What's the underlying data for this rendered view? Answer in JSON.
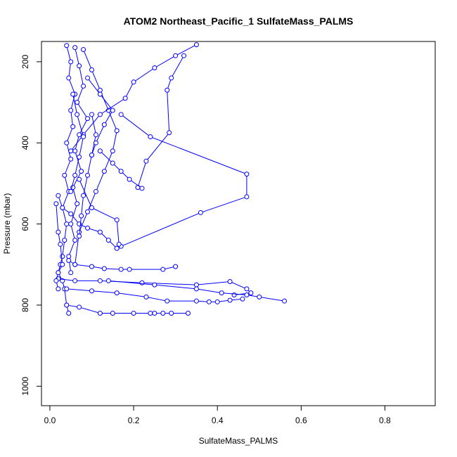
{
  "chart_data": {
    "type": "scatter",
    "title": "ATOM2 Northeast_Pacific_1 SulfateMass_PALMS",
    "xlabel": "SulfateMass_PALMS",
    "ylabel": "Pressure (mbar)",
    "xlim": [
      -0.02,
      0.92
    ],
    "ylim": [
      1048,
      150
    ],
    "y_reversed": true,
    "x_ticks": [
      0.0,
      0.2,
      0.4,
      0.6,
      0.8
    ],
    "x_tick_labels": [
      "0.0",
      "0.2",
      "0.4",
      "0.6",
      "0.8"
    ],
    "y_ticks": [
      200,
      400,
      600,
      800,
      1000
    ],
    "y_tick_labels": [
      "200",
      "400",
      "600",
      "800",
      "1000"
    ],
    "grid": false,
    "legend": "none",
    "series_color": "#0000ff",
    "series": [
      {
        "x": [
          0.04,
          0.05,
          0.045,
          0.06,
          0.05,
          0.055,
          0.04,
          0.05,
          0.035,
          0.045,
          0.03,
          0.04,
          0.035,
          0.03,
          0.025,
          0.02,
          0.03,
          0.035,
          0.04,
          0.045
        ],
        "y": [
          160,
          200,
          240,
          280,
          320,
          360,
          400,
          440,
          480,
          520,
          560,
          600,
          640,
          680,
          700,
          720,
          740,
          760,
          800,
          820
        ]
      },
      {
        "x": [
          0.06,
          0.07,
          0.08,
          0.065,
          0.09,
          0.07,
          0.06,
          0.075,
          0.055,
          0.065,
          0.05,
          0.06,
          0.045,
          0.05
        ],
        "y": [
          165,
          210,
          260,
          300,
          340,
          380,
          420,
          470,
          510,
          550,
          600,
          640,
          680,
          720
        ]
      },
      {
        "x": [
          0.08,
          0.1,
          0.12,
          0.14,
          0.16,
          0.15,
          0.13,
          0.11,
          0.09,
          0.07,
          0.06
        ],
        "y": [
          170,
          220,
          270,
          320,
          370,
          420,
          470,
          520,
          570,
          620,
          700
        ]
      },
      {
        "x": [
          0.35,
          0.3,
          0.25,
          0.2,
          0.18,
          0.12,
          0.08,
          0.05
        ],
        "y": [
          158,
          185,
          215,
          250,
          290,
          330,
          380,
          420
        ]
      },
      {
        "x": [
          0.32,
          0.29,
          0.28,
          0.285,
          0.23,
          0.21
        ],
        "y": [
          185,
          240,
          270,
          375,
          445,
          510
        ]
      },
      {
        "x": [
          0.17,
          0.24,
          0.47,
          0.47,
          0.36,
          0.17,
          0.16
        ],
        "y": [
          330,
          385,
          477,
          533,
          572,
          655,
          660
        ]
      },
      {
        "x": [
          0.12,
          0.15,
          0.17,
          0.19,
          0.22
        ],
        "y": [
          420,
          450,
          470,
          490,
          512
        ]
      },
      {
        "x": [
          0.07,
          0.1,
          0.16,
          0.165
        ],
        "y": [
          490,
          560,
          590,
          650
        ]
      },
      {
        "x": [
          0.02,
          0.03,
          0.05,
          0.07,
          0.09,
          0.12,
          0.14,
          0.16
        ],
        "y": [
          530,
          560,
          575,
          600,
          610,
          620,
          640,
          660
        ]
      },
      {
        "x": [
          0.045,
          0.06,
          0.1,
          0.13,
          0.17,
          0.19,
          0.27,
          0.3
        ],
        "y": [
          690,
          700,
          705,
          710,
          712,
          712,
          712,
          705
        ]
      },
      {
        "x": [
          0.02,
          0.06,
          0.12,
          0.22,
          0.35,
          0.43,
          0.47,
          0.48,
          0.44
        ],
        "y": [
          735,
          740,
          740,
          745,
          750,
          742,
          760,
          770,
          775
        ]
      },
      {
        "x": [
          0.04,
          0.1,
          0.16,
          0.23,
          0.28,
          0.35,
          0.38,
          0.4,
          0.43,
          0.46
        ],
        "y": [
          760,
          765,
          770,
          780,
          790,
          790,
          792,
          792,
          788,
          785
        ]
      },
      {
        "x": [
          0.14,
          0.25,
          0.35,
          0.41,
          0.47,
          0.5,
          0.56
        ],
        "y": [
          740,
          750,
          760,
          770,
          775,
          780,
          790
        ]
      },
      {
        "x": [
          0.04,
          0.07,
          0.12,
          0.15,
          0.2,
          0.24,
          0.25,
          0.27,
          0.29,
          0.33
        ],
        "y": [
          800,
          805,
          820,
          820,
          820,
          820,
          820,
          820,
          820,
          820
        ]
      },
      {
        "x": [
          0.015,
          0.02,
          0.025,
          0.03,
          0.02,
          0.015,
          0.02
        ],
        "y": [
          550,
          620,
          650,
          700,
          720,
          740,
          760
        ]
      },
      {
        "x": [
          0.1,
          0.11,
          0.1,
          0.09,
          0.08,
          0.075,
          0.07
        ],
        "y": [
          330,
          380,
          430,
          480,
          530,
          580,
          630
        ]
      },
      {
        "x": [
          0.055,
          0.065,
          0.08,
          0.07,
          0.06,
          0.05
        ],
        "y": [
          280,
          330,
          385,
          435,
          480,
          520
        ]
      },
      {
        "x": [
          0.09,
          0.12,
          0.15,
          0.13,
          0.11,
          0.1
        ],
        "y": [
          240,
          280,
          320,
          355,
          400,
          430
        ]
      }
    ]
  }
}
